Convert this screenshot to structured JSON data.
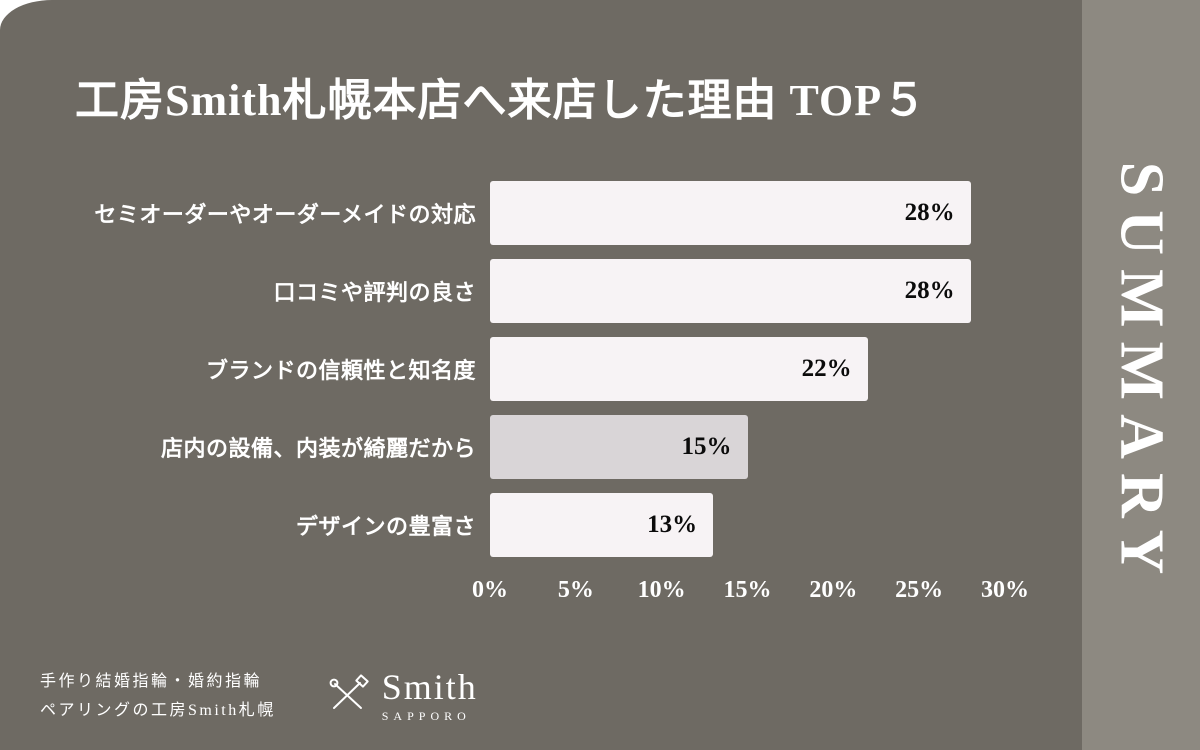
{
  "page": {
    "summary_label": "SUMMARY"
  },
  "chart_data": {
    "type": "bar",
    "orientation": "horizontal",
    "title": "工房Smith札幌本店へ来店した理由 TOP５",
    "categories": [
      "セミオーダーやオーダーメイドの対応",
      "口コミや評判の良さ",
      "ブランドの信頼性と知名度",
      "店内の設備、内装が綺麗だから",
      "デザインの豊富さ"
    ],
    "values": [
      28,
      28,
      22,
      15,
      13
    ],
    "value_labels": [
      "28%",
      "28%",
      "22%",
      "15%",
      "13%"
    ],
    "xlabel": "",
    "ylabel": "",
    "xlim": [
      0,
      30
    ],
    "tick_values": [
      0,
      5,
      10,
      15,
      20,
      25,
      30
    ],
    "x_ticks": [
      "0%",
      "5%",
      "10%",
      "15%",
      "20%",
      "25%",
      "30%"
    ],
    "grid": false,
    "legend_position": "none",
    "bar_colors": [
      "#f7f3f5",
      "#f7f3f5",
      "#f7f3f5",
      "#d9d5d7",
      "#f7f3f5"
    ]
  },
  "footer": {
    "tagline_line1": "手作り結婚指輪・婚約指輪",
    "tagline_line2": "ペアリングの工房Smith札幌",
    "brand_name": "Smith",
    "brand_sub": "SAPPORO"
  },
  "colors": {
    "background": "#6e6a63",
    "side_strip": "#8d8981",
    "bar_default": "#f7f3f5",
    "bar_muted": "#d9d5d7",
    "text_light": "#ffffff",
    "text_dark": "#0b0b0b"
  }
}
